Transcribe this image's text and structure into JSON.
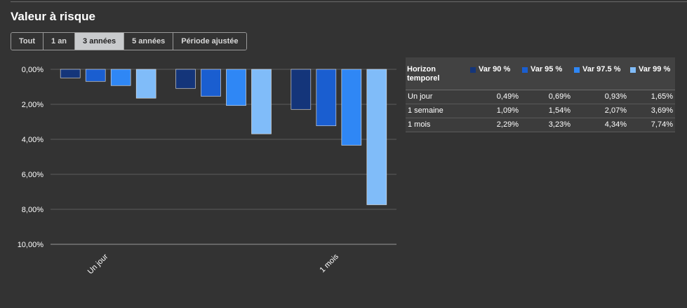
{
  "title": "Valeur à risque",
  "tabs": [
    {
      "label": "Tout",
      "active": false
    },
    {
      "label": "1 an",
      "active": false
    },
    {
      "label": "3 années",
      "active": true
    },
    {
      "label": "5 années",
      "active": false
    },
    {
      "label": "Période ajustée",
      "active": false
    }
  ],
  "chart_data": {
    "type": "bar",
    "categories": [
      "Un jour",
      "1 semaine",
      "1 mois"
    ],
    "visible_x_labels": [
      "Un jour",
      "",
      "1 mois"
    ],
    "series": [
      {
        "name": "Var 90 %",
        "color": "#14357a",
        "values": [
          0.49,
          1.09,
          2.29
        ]
      },
      {
        "name": "Var 95 %",
        "color": "#1a5ed0",
        "values": [
          0.69,
          1.54,
          3.23
        ]
      },
      {
        "name": "Var 97.5 %",
        "color": "#2f87f5",
        "values": [
          0.93,
          2.07,
          4.34
        ]
      },
      {
        "name": "Var 99 %",
        "color": "#80bcf9",
        "values": [
          1.65,
          3.69,
          7.74
        ]
      }
    ],
    "y_ticks": [
      "0,00%",
      "2,00%",
      "4,00%",
      "6,00%",
      "8,00%",
      "10,00%"
    ],
    "ylim": [
      0,
      10
    ],
    "y_inverted": true,
    "grid": true
  },
  "table": {
    "headers": [
      "Horizon temporel",
      "Var 90 %",
      "Var 95 %",
      "Var 97.5 %",
      "Var 99 %"
    ],
    "rows": [
      [
        "Un jour",
        "0,49%",
        "0,69%",
        "0,93%",
        "1,65%"
      ],
      [
        "1 semaine",
        "1,09%",
        "1,54%",
        "2,07%",
        "3,69%"
      ],
      [
        "1 mois",
        "2,29%",
        "3,23%",
        "4,34%",
        "7,74%"
      ]
    ]
  }
}
